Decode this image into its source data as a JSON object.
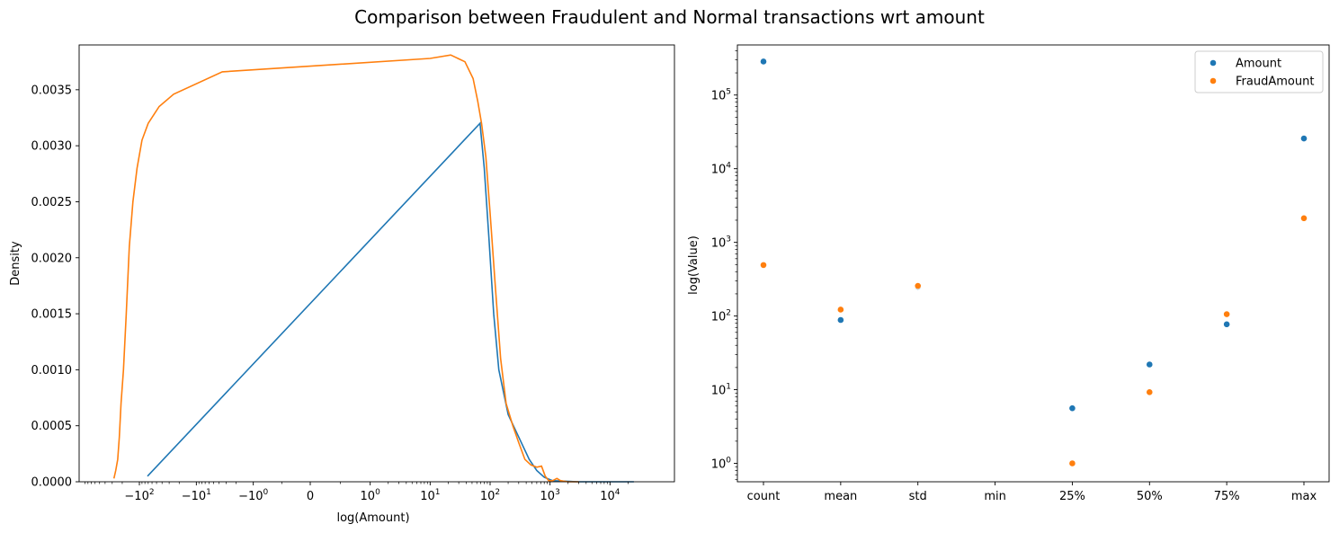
{
  "title": "Comparison between Fraudulent and Normal transactions wrt amount",
  "colors": {
    "blue": "#1f77b4",
    "orange": "#ff7f0e"
  },
  "chart_data": [
    {
      "type": "line",
      "xlabel": "log(Amount)",
      "ylabel": "Density",
      "xscale": "symlog",
      "ylim": [
        0,
        0.0039
      ],
      "y_ticks": [
        0,
        0.0005,
        0.001,
        0.0015,
        0.002,
        0.0025,
        0.003,
        0.0035
      ],
      "y_tick_labels": [
        "0.0000",
        "0.0005",
        "0.0010",
        "0.0015",
        "0.0020",
        "0.0025",
        "0.0030",
        "0.0035"
      ],
      "x_ticks": [
        -100,
        -10,
        -1,
        0,
        1,
        10,
        100,
        1000,
        10000
      ],
      "x_tick_labels": [
        "−10^2",
        "−10^1",
        "−10^0",
        "0",
        "10^0",
        "10^1",
        "10^2",
        "10^3",
        "10^4"
      ],
      "series": [
        {
          "color": "blue",
          "points": [
            [
              -72,
              5e-05
            ],
            [
              68,
              0.0032
            ],
            [
              80,
              0.0028
            ],
            [
              95,
              0.0022
            ],
            [
              115,
              0.0015
            ],
            [
              140,
              0.001
            ],
            [
              200,
              0.0006
            ],
            [
              300,
              0.0004
            ],
            [
              450,
              0.0002
            ],
            [
              600,
              0.0001
            ],
            [
              800,
              4e-05
            ],
            [
              1100,
              1e-05
            ],
            [
              3000,
              0.0
            ],
            [
              10000,
              0.0
            ],
            [
              25000,
              0.0
            ]
          ]
        },
        {
          "color": "orange",
          "points": [
            [
              -280,
              3e-05
            ],
            [
              -260,
              0.0001
            ],
            [
              -240,
              0.0002
            ],
            [
              -225,
              0.0004
            ],
            [
              -210,
              0.0007
            ],
            [
              -190,
              0.001
            ],
            [
              -170,
              0.0015
            ],
            [
              -150,
              0.0021
            ],
            [
              -130,
              0.0025
            ],
            [
              -110,
              0.0028
            ],
            [
              -90,
              0.00305
            ],
            [
              -70,
              0.0032
            ],
            [
              -45,
              0.00335
            ],
            [
              -25,
              0.00346
            ],
            [
              -3.5,
              0.00366
            ],
            [
              10,
              0.00378
            ],
            [
              22,
              0.00381
            ],
            [
              38,
              0.00375
            ],
            [
              52,
              0.0036
            ],
            [
              62,
              0.0034
            ],
            [
              72,
              0.0032
            ],
            [
              85,
              0.0029
            ],
            [
              100,
              0.0024
            ],
            [
              120,
              0.0018
            ],
            [
              150,
              0.0011
            ],
            [
              185,
              0.0007
            ],
            [
              240,
              0.0005
            ],
            [
              300,
              0.00035
            ],
            [
              380,
              0.0002
            ],
            [
              480,
              0.00015
            ],
            [
              600,
              0.00013
            ],
            [
              720,
              0.00014
            ],
            [
              830,
              5e-05
            ],
            [
              950,
              1e-05
            ],
            [
              1100,
              1e-05
            ],
            [
              1300,
              3e-05
            ],
            [
              1500,
              1e-05
            ],
            [
              2000,
              0.0
            ],
            [
              3000,
              0.0
            ]
          ]
        }
      ]
    },
    {
      "type": "scatter",
      "xlabel": "",
      "ylabel": "log(Value)",
      "yscale": "log",
      "ylim_exp": [
        -0.25,
        5.68
      ],
      "categories": [
        "count",
        "mean",
        "std",
        "min",
        "25%",
        "50%",
        "75%",
        "max"
      ],
      "y_tick_labels": [
        "10^0",
        "10^1",
        "10^2",
        "10^3",
        "10^4",
        "10^5"
      ],
      "legend": {
        "position": "top-right",
        "entries": [
          "Amount",
          "FraudAmount"
        ]
      },
      "series": [
        {
          "name": "Amount",
          "color": "blue",
          "values": [
            284807,
            88.35,
            250.12,
            0,
            5.6,
            22.0,
            77.17,
            25691.16
          ]
        },
        {
          "name": "FraudAmount",
          "color": "orange",
          "values": [
            492,
            122.21,
            256.68,
            0,
            1.0,
            9.25,
            105.89,
            2125.87
          ]
        }
      ]
    }
  ]
}
